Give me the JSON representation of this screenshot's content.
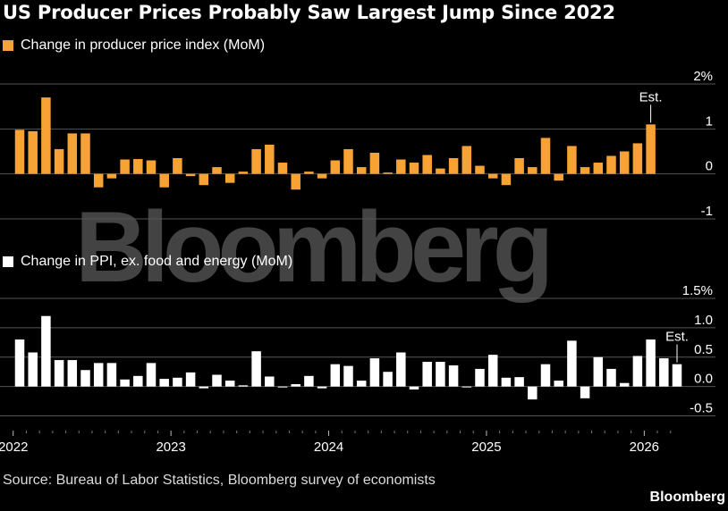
{
  "title": "US Producer Prices Probably Saw Largest Jump Since 2022",
  "source": "Source: Bureau of Labor Statistics, Bloomberg survey of economists",
  "brand": "Bloomberg",
  "watermark": "Bloomberg",
  "colors": {
    "ppi": "#f7a234",
    "core": "#ffffff",
    "background": "#000000",
    "grid": "#555555"
  },
  "chart_data": [
    {
      "type": "bar",
      "legend": "Change in producer price index (MoM)",
      "annotation": "Est.",
      "ylim": [
        -1.2,
        2
      ],
      "ticks": [
        {
          "value": 2,
          "label": "2%"
        },
        {
          "value": 1,
          "label": "1"
        },
        {
          "value": 0,
          "label": "0"
        },
        {
          "value": -1,
          "label": "-1"
        }
      ],
      "x_labels": [
        "2022",
        "2023",
        "2024",
        "2025",
        "2026"
      ],
      "x_start": "2022-01",
      "values": [
        0.98,
        0.95,
        1.7,
        0.55,
        0.9,
        0.9,
        -0.3,
        -0.1,
        0.32,
        0.33,
        0.3,
        -0.3,
        0.35,
        -0.05,
        -0.25,
        0.15,
        -0.2,
        0.05,
        0.55,
        0.65,
        0.25,
        -0.35,
        0.05,
        -0.1,
        0.3,
        0.55,
        0.15,
        0.47,
        0.03,
        0.32,
        0.25,
        0.42,
        0.12,
        0.35,
        0.62,
        0.18,
        -0.1,
        -0.25,
        0.35,
        0.15,
        0.8,
        -0.15,
        0.62,
        0.15,
        0.25,
        0.4,
        0.5,
        0.68,
        1.1
      ]
    },
    {
      "type": "bar",
      "legend": "Change in PPI, ex. food and energy (MoM)",
      "annotation": "Est.",
      "ylim": [
        -0.75,
        1.5
      ],
      "ticks": [
        {
          "value": 1.5,
          "label": "1.5%"
        },
        {
          "value": 1.0,
          "label": "1.0"
        },
        {
          "value": 0.5,
          "label": "0.5"
        },
        {
          "value": 0.0,
          "label": "0.0"
        },
        {
          "value": -0.5,
          "label": "-0.5"
        }
      ],
      "x_labels": [
        "2022",
        "2023",
        "2024",
        "2025",
        "2026"
      ],
      "x_start": "2022-01",
      "values": [
        0.8,
        0.58,
        1.2,
        0.45,
        0.45,
        0.28,
        0.4,
        0.4,
        0.12,
        0.18,
        0.4,
        0.13,
        0.15,
        0.24,
        -0.03,
        0.2,
        0.1,
        0.02,
        0.6,
        0.17,
        0.0,
        0.04,
        0.18,
        -0.03,
        0.38,
        0.35,
        0.1,
        0.48,
        0.25,
        0.58,
        -0.05,
        0.42,
        0.42,
        0.36,
        0.0,
        0.3,
        0.54,
        0.15,
        0.16,
        -0.22,
        0.38,
        0.1,
        0.78,
        -0.2,
        0.5,
        0.3,
        0.06,
        0.52,
        0.8,
        0.48,
        0.38
      ]
    }
  ]
}
